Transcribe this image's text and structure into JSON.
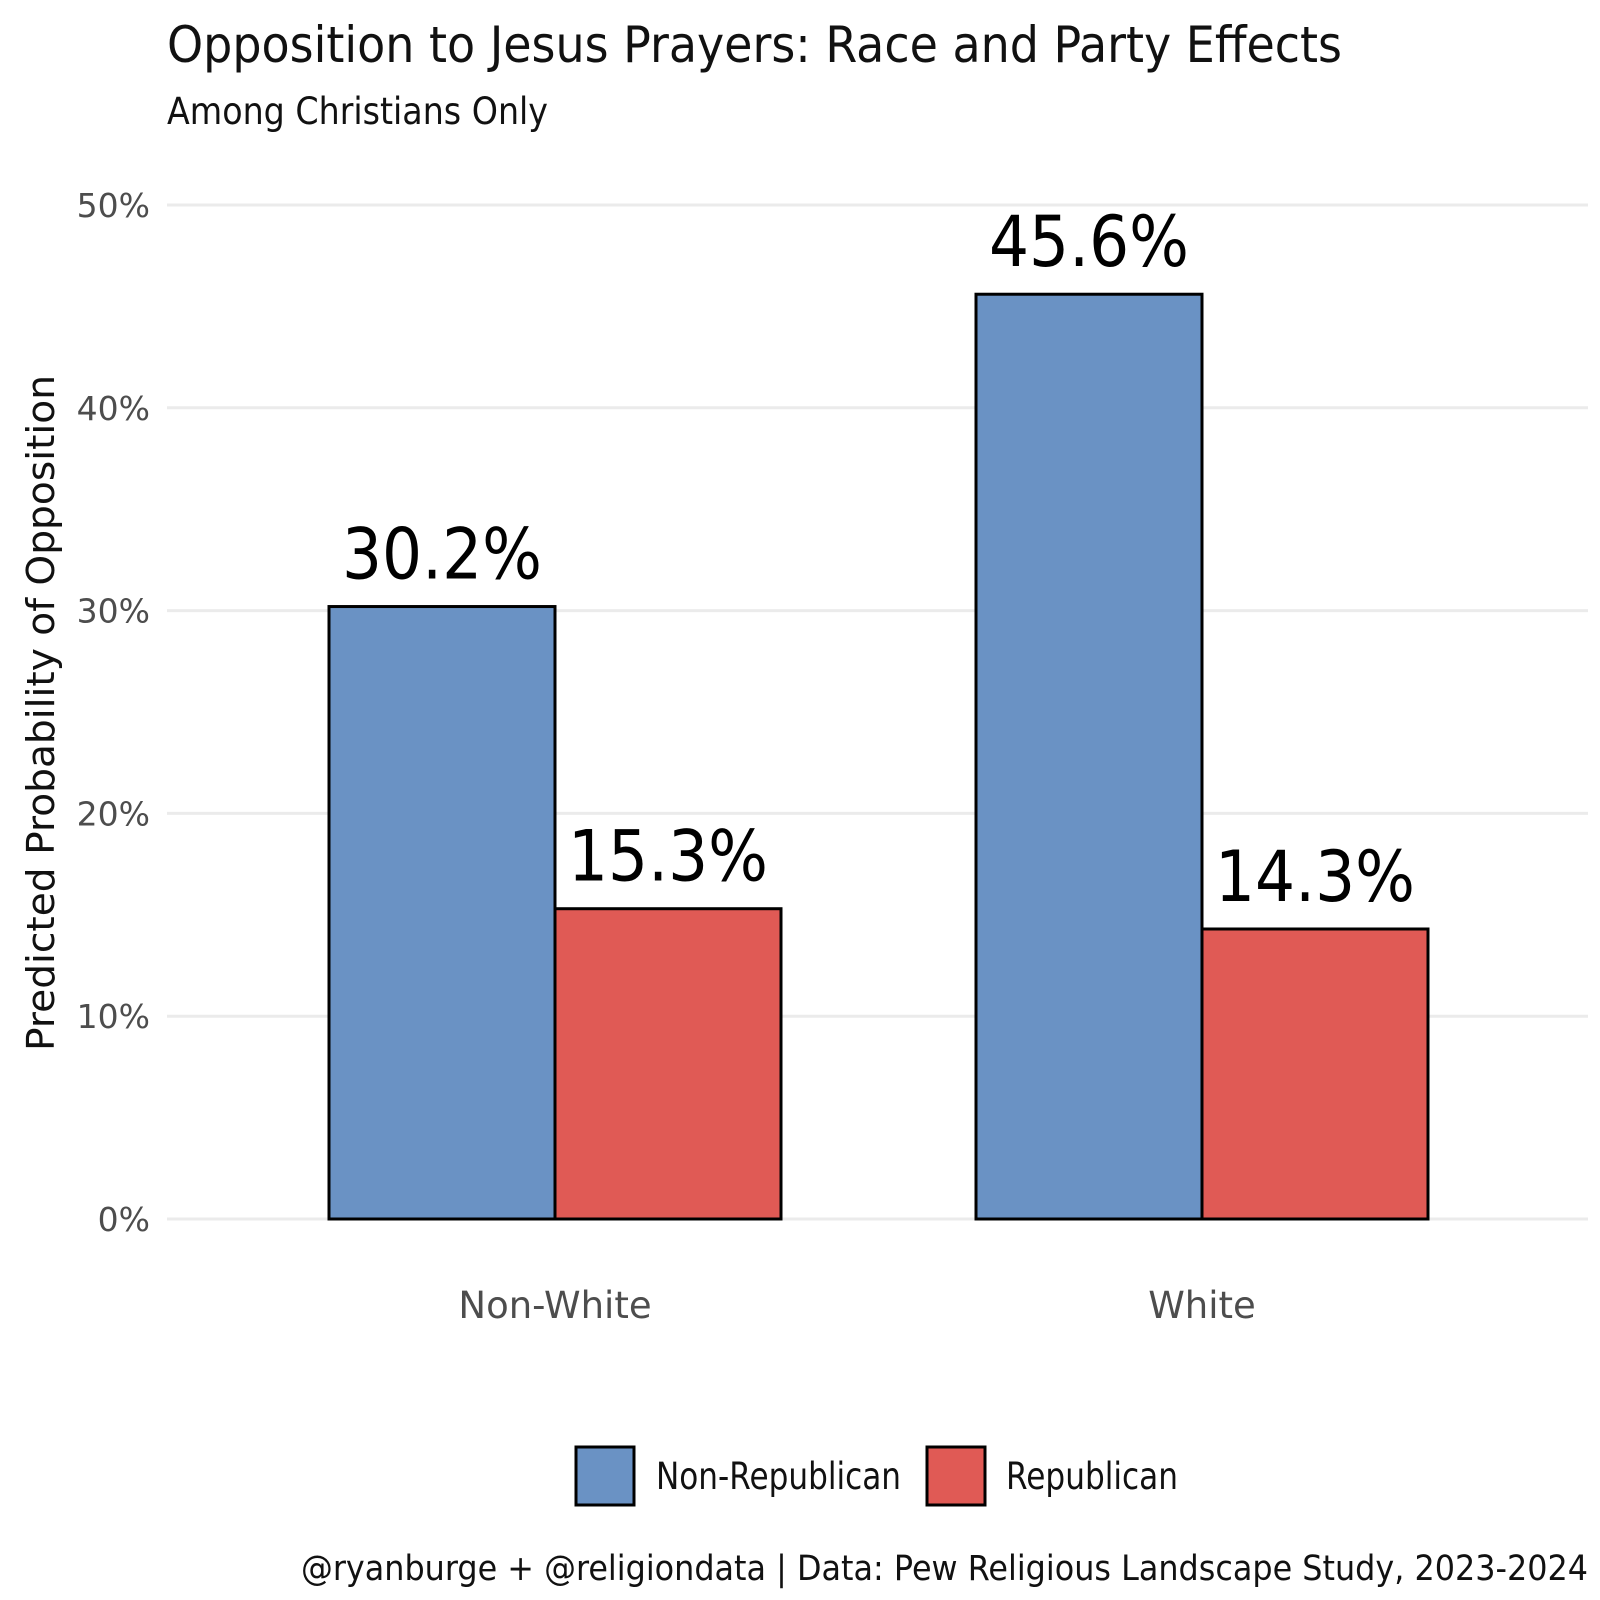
{
  "title": "Opposition to Jesus Prayers: Race and Party Effects",
  "subtitle": "Among Christians Only",
  "caption": "@ryanburge + @religiondata | Data: Pew Religious Landscape Study, 2023-2024",
  "colors": {
    "non_republican": "#6a92c4",
    "republican": "#e05a55",
    "grid": "#ebebeb"
  },
  "chart_data": {
    "type": "bar",
    "title": "Opposition to Jesus Prayers: Race and Party Effects",
    "subtitle": "Among Christians Only",
    "xlabel": "",
    "ylabel": "Predicted Probability of Opposition",
    "ylim": [
      0,
      50
    ],
    "yticks": [
      0,
      10,
      20,
      30,
      40,
      50
    ],
    "ytick_labels": [
      "0%",
      "10%",
      "20%",
      "30%",
      "40%",
      "50%"
    ],
    "grid": true,
    "legend_position": "bottom",
    "categories": [
      "Non-White",
      "White"
    ],
    "series": [
      {
        "name": "Non-Republican",
        "color": "#6a92c4",
        "values": [
          30.2,
          45.6
        ],
        "labels": [
          "30.2%",
          "45.6%"
        ]
      },
      {
        "name": "Republican",
        "color": "#e05a55",
        "values": [
          15.3,
          14.3
        ],
        "labels": [
          "15.3%",
          "14.3%"
        ]
      }
    ]
  }
}
